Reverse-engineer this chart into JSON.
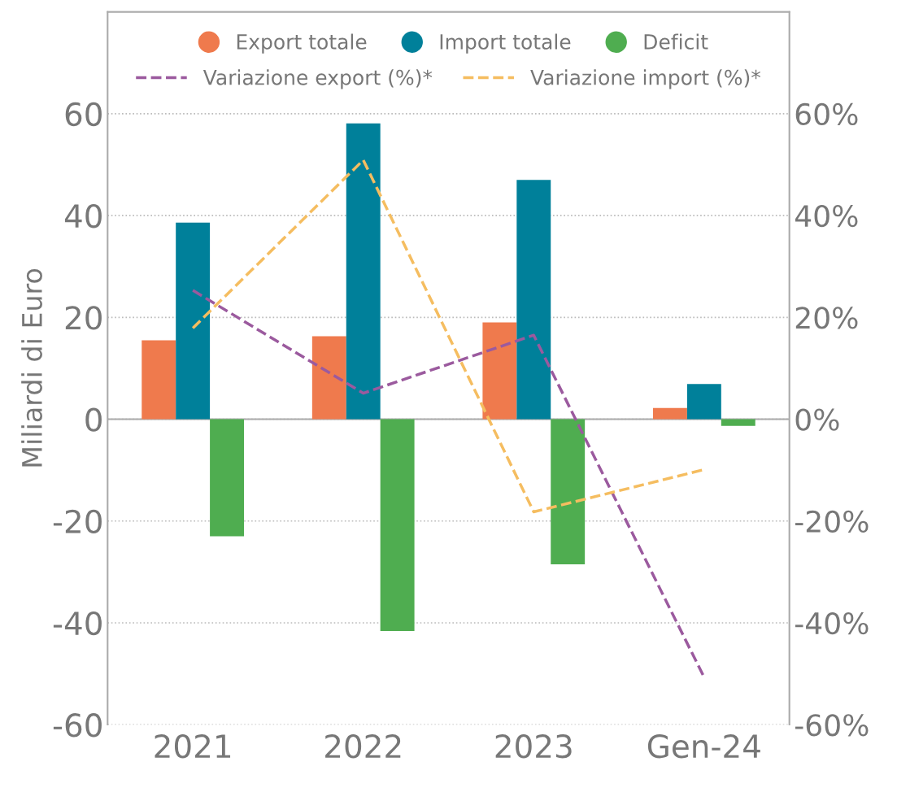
{
  "chart_data": {
    "type": "bar",
    "ylabel": "Miliardi di Euro",
    "categories": [
      "2021",
      "2022",
      "2023",
      "Gen-24"
    ],
    "series": [
      {
        "name": "Export totale",
        "color": "#ef7a4d",
        "values": [
          15.5,
          16.3,
          19.0,
          2.2
        ]
      },
      {
        "name": "Import totale",
        "color": "#00809a",
        "values": [
          38.6,
          58.1,
          47.0,
          6.9
        ]
      },
      {
        "name": "Deficit",
        "color": "#4fad50",
        "values": [
          -23.0,
          -41.6,
          -28.5,
          -1.3
        ]
      },
      {
        "name": "Variazione export (%)*",
        "type": "line",
        "color": "#9b5a9e",
        "values": [
          25.3,
          5.1,
          16.5,
          -50.7
        ]
      },
      {
        "name": "Variazione import (%)*",
        "type": "line",
        "color": "#f5bd60",
        "values": [
          17.9,
          50.9,
          -18.2,
          -9.9
        ]
      }
    ],
    "ylim": [
      -60,
      80
    ],
    "yticks": [
      -60,
      -40,
      -20,
      0,
      20,
      40,
      60
    ],
    "y2lim": [
      -60,
      80
    ],
    "y2ticks": [
      {
        "value": -60,
        "label": "-60%"
      },
      {
        "value": -40,
        "label": "-40%"
      },
      {
        "value": -20,
        "label": "-20%"
      },
      {
        "value": 0,
        "label": "0%"
      },
      {
        "value": 20,
        "label": "20%"
      },
      {
        "value": 40,
        "label": "40%"
      },
      {
        "value": 60,
        "label": "60%"
      }
    ],
    "grid": "y",
    "legend": "top",
    "line_style": "dashed",
    "marker": "none"
  }
}
